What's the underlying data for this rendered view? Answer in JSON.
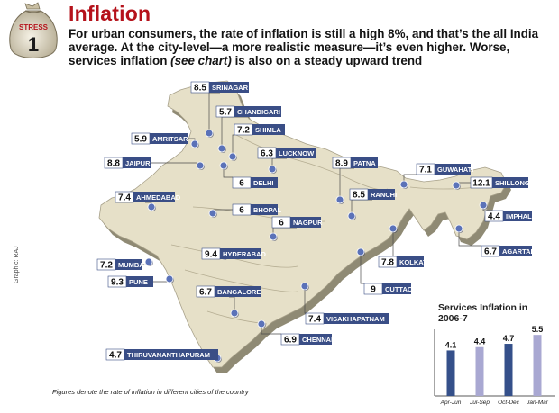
{
  "header": {
    "badge_label": "STRESS",
    "badge_number": "1",
    "title": "Inflation",
    "intro_part1": "For urban consumers, the rate of inflation is still a high 8%, and that’s the all India average. At the city-level—a more realistic measure—it’s even higher. Worse, services inflation ",
    "intro_em": "(see chart)",
    "intro_part2": " is also on a steady upward trend"
  },
  "map": {
    "credit": "Graphic: RAJ",
    "footnote": "Figures denote the rate of inflation in different cities of the country",
    "cities": [
      {
        "name": "SRINAGAR",
        "value": "8.5"
      },
      {
        "name": "CHANDIGARH",
        "value": "5.7"
      },
      {
        "name": "AMRITSAR",
        "value": "5.9"
      },
      {
        "name": "SHIMLA",
        "value": "7.2"
      },
      {
        "name": "LUCKNOW",
        "value": "6.3"
      },
      {
        "name": "JAIPUR",
        "value": "8.8"
      },
      {
        "name": "DELHI",
        "value": "6"
      },
      {
        "name": "PATNA",
        "value": "8.9"
      },
      {
        "name": "GUWAHATI",
        "value": "7.1"
      },
      {
        "name": "SHILLONG",
        "value": "12.1"
      },
      {
        "name": "AHMEDABAD",
        "value": "7.4"
      },
      {
        "name": "BHOPAL",
        "value": "6"
      },
      {
        "name": "RANCHI",
        "value": "8.5"
      },
      {
        "name": "IMPHAL",
        "value": "4.4"
      },
      {
        "name": "NAGPUR",
        "value": "6"
      },
      {
        "name": "AGARTALA",
        "value": "6.7"
      },
      {
        "name": "HYDERABAD",
        "value": "9.4"
      },
      {
        "name": "MUMBAI",
        "value": "7.2"
      },
      {
        "name": "KOLKATA",
        "value": "7.8"
      },
      {
        "name": "PUNE",
        "value": "9.3"
      },
      {
        "name": "CUTTACK",
        "value": "9"
      },
      {
        "name": "BANGALORE",
        "value": "6.7"
      },
      {
        "name": "VISAKHAPATNAM",
        "value": "7.4"
      },
      {
        "name": "CHENNAI",
        "value": "6.9"
      },
      {
        "name": "THIRUVANANTHAPURAM",
        "value": "4.7"
      }
    ]
  },
  "chart_data": {
    "type": "bar",
    "title": "Services Inflation in 2006-7",
    "categories": [
      "Apr-Jun",
      "Jul-Sep",
      "Oct-Dec",
      "Jan-Mar"
    ],
    "values": [
      4.1,
      4.4,
      4.7,
      5.5
    ],
    "value_labels": [
      "4.1",
      "4.4",
      "4.7",
      "5.5"
    ],
    "ylim": [
      0,
      6
    ],
    "colors": [
      "#35508a",
      "#a9a8d2",
      "#35508a",
      "#a9a8d2"
    ]
  },
  "colors": {
    "title_red": "#b5121b",
    "label_box": "#3a4e86",
    "map_land": "#e6e0c8",
    "map_shade": "#8f8a74",
    "city_dot": "#5b72b8"
  }
}
